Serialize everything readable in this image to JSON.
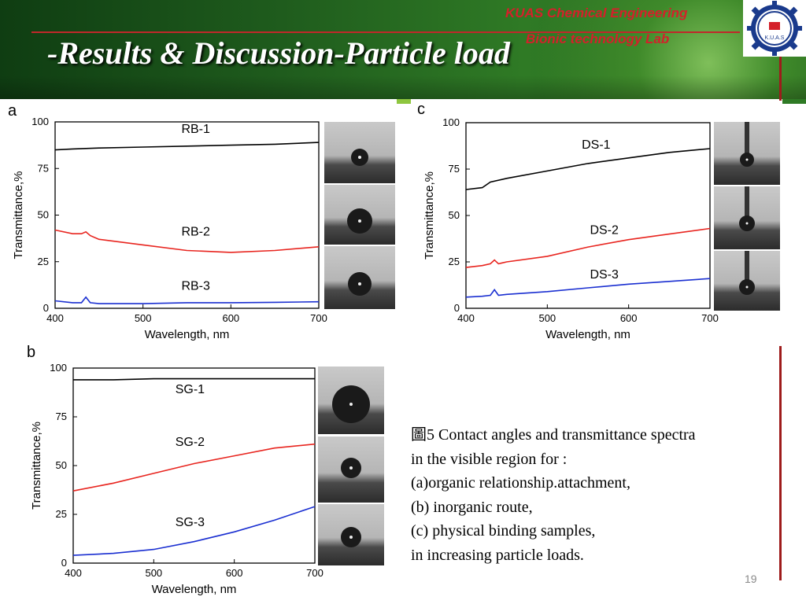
{
  "header": {
    "title": "-Results & Discussion-Particle load",
    "lab_line1": "KUAS Chemical Engineering",
    "lab_line2": "Bionic  technology  Lab",
    "logo_text": "K.U.A.S"
  },
  "caption": {
    "lines": [
      "圖5  Contact angles and transmittance spectra",
      "in the visible region for :",
      "(a)organic relationship.attachment,",
      "(b) inorganic route,",
      "(c) physical binding samples,",
      " in increasing particle loads."
    ]
  },
  "page_number": "19",
  "chart_data": [
    {
      "panel": "a",
      "type": "line",
      "xlabel": "Wavelength, nm",
      "ylabel": "Transmittance,%",
      "xlim": [
        400,
        700
      ],
      "ylim": [
        0,
        100
      ],
      "xticks": [
        "400",
        "500",
        "600",
        "700"
      ],
      "yticks": [
        "0",
        "25",
        "50",
        "75",
        "100"
      ],
      "series": [
        {
          "name": "RB-1",
          "color": "#000000",
          "x": [
            400,
            420,
            450,
            500,
            550,
            600,
            650,
            700
          ],
          "y": [
            85,
            85.5,
            86,
            86.5,
            87,
            87.5,
            88,
            89
          ]
        },
        {
          "name": "RB-2",
          "color": "#e8251f",
          "x": [
            400,
            420,
            430,
            435,
            440,
            450,
            500,
            550,
            600,
            650,
            700
          ],
          "y": [
            42,
            40,
            40,
            41,
            39,
            37,
            34,
            31,
            30,
            31,
            33
          ]
        },
        {
          "name": "RB-3",
          "color": "#1a2fd1",
          "x": [
            400,
            420,
            430,
            435,
            440,
            450,
            500,
            550,
            600,
            650,
            700
          ],
          "y": [
            4,
            3,
            3,
            6,
            3,
            2.5,
            2.5,
            3,
            3,
            3.2,
            3.5
          ]
        }
      ]
    },
    {
      "panel": "b",
      "type": "line",
      "xlabel": "Wavelength, nm",
      "ylabel": "Transmittance,%",
      "xlim": [
        400,
        700
      ],
      "ylim": [
        0,
        100
      ],
      "xticks": [
        "400",
        "500",
        "600",
        "700"
      ],
      "yticks": [
        "0",
        "25",
        "50",
        "75",
        "100"
      ],
      "series": [
        {
          "name": "SG-1",
          "color": "#000000",
          "x": [
            400,
            450,
            500,
            550,
            600,
            650,
            700
          ],
          "y": [
            94,
            94,
            94.5,
            94.5,
            94.5,
            94.5,
            94.5
          ]
        },
        {
          "name": "SG-2",
          "color": "#e8251f",
          "x": [
            400,
            450,
            500,
            550,
            600,
            650,
            700
          ],
          "y": [
            37,
            41,
            46,
            51,
            55,
            59,
            61
          ]
        },
        {
          "name": "SG-3",
          "color": "#1a2fd1",
          "x": [
            400,
            450,
            500,
            550,
            600,
            650,
            700
          ],
          "y": [
            4,
            5,
            7,
            11,
            16,
            22,
            29
          ]
        }
      ]
    },
    {
      "panel": "c",
      "type": "line",
      "xlabel": "Wavelength, nm",
      "ylabel": "Transmittance,%",
      "xlim": [
        400,
        700
      ],
      "ylim": [
        0,
        100
      ],
      "xticks": [
        "400",
        "500",
        "600",
        "700"
      ],
      "yticks": [
        "0",
        "25",
        "50",
        "75",
        "100"
      ],
      "series": [
        {
          "name": "DS-1",
          "color": "#000000",
          "x": [
            400,
            420,
            430,
            450,
            500,
            550,
            600,
            650,
            700
          ],
          "y": [
            64,
            65,
            68,
            70,
            74,
            78,
            81,
            84,
            86
          ]
        },
        {
          "name": "DS-2",
          "color": "#e8251f",
          "x": [
            400,
            420,
            430,
            435,
            440,
            450,
            500,
            550,
            600,
            650,
            700
          ],
          "y": [
            22,
            23,
            24,
            26,
            24,
            25,
            28,
            33,
            37,
            40,
            43
          ]
        },
        {
          "name": "DS-3",
          "color": "#1a2fd1",
          "x": [
            400,
            420,
            430,
            435,
            440,
            450,
            500,
            550,
            600,
            650,
            700
          ],
          "y": [
            6,
            6.5,
            7,
            10,
            7,
            7.5,
            9,
            11,
            13,
            14.5,
            16
          ]
        }
      ]
    }
  ]
}
